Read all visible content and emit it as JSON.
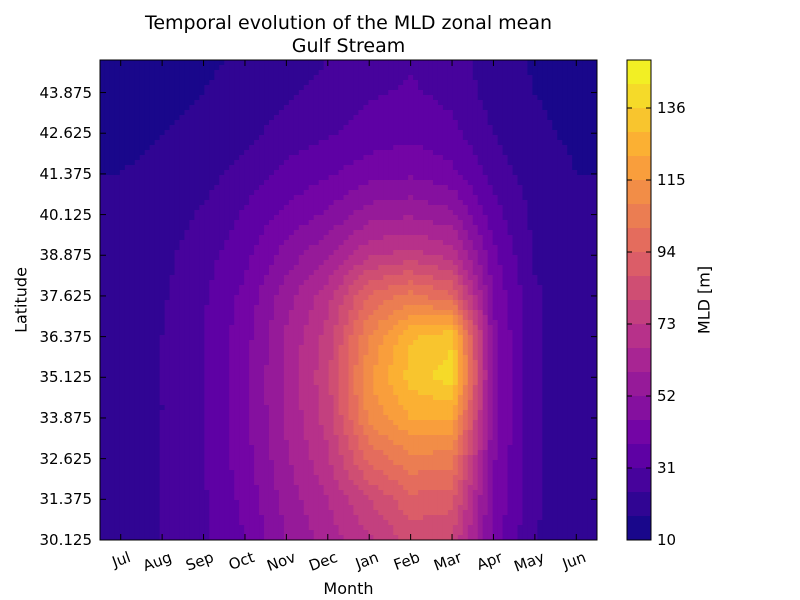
{
  "chart_data": {
    "type": "heatmap",
    "title": "Temporal evolution of the MLD zonal mean",
    "subtitle": "Gulf Stream",
    "xlabel": "Month",
    "ylabel": "Latitude",
    "colorbar_label": "MLD [m]",
    "colormap": "plasma",
    "colormap_stops": [
      "#0d0887",
      "#6a00a8",
      "#b12a90",
      "#e16462",
      "#fca636",
      "#f0f921"
    ],
    "x_categories": [
      "Jul",
      "Aug",
      "Sep",
      "Oct",
      "Nov",
      "Dec",
      "Jan",
      "Feb",
      "Mar",
      "Apr",
      "May",
      "Jun"
    ],
    "y_ticks": [
      "30.125",
      "31.375",
      "32.625",
      "33.875",
      "35.125",
      "36.375",
      "37.625",
      "38.875",
      "40.125",
      "41.375",
      "42.625",
      "43.875"
    ],
    "ylim": [
      30.125,
      44.875
    ],
    "colorbar_ticks": [
      10,
      31,
      52,
      73,
      94,
      115,
      136
    ],
    "clim": [
      10,
      150
    ],
    "z_latitudes": [
      30.125,
      31.375,
      32.625,
      33.875,
      35.125,
      36.375,
      37.625,
      38.875,
      40.125,
      41.375,
      42.625,
      43.875,
      44.875
    ],
    "z_values": [
      [
        20,
        24,
        30,
        38,
        52,
        62,
        72,
        82,
        80,
        42,
        24,
        20
      ],
      [
        20,
        24,
        30,
        40,
        55,
        66,
        80,
        92,
        90,
        44,
        25,
        20
      ],
      [
        20,
        24,
        31,
        42,
        58,
        72,
        96,
        106,
        105,
        46,
        25,
        20
      ],
      [
        20,
        24,
        31,
        43,
        60,
        76,
        110,
        122,
        122,
        48,
        25,
        20
      ],
      [
        20,
        24,
        31,
        43,
        61,
        78,
        114,
        132,
        140,
        48,
        25,
        20
      ],
      [
        20,
        24,
        31,
        42,
        60,
        76,
        108,
        128,
        134,
        47,
        25,
        20
      ],
      [
        20,
        23,
        30,
        40,
        56,
        70,
        95,
        104,
        95,
        44,
        25,
        20
      ],
      [
        19,
        22,
        28,
        36,
        48,
        58,
        72,
        76,
        70,
        40,
        23,
        19
      ],
      [
        18,
        20,
        25,
        32,
        40,
        46,
        56,
        58,
        54,
        34,
        22,
        18
      ],
      [
        17,
        18,
        21,
        27,
        33,
        37,
        42,
        44,
        40,
        28,
        20,
        17
      ],
      [
        16,
        17,
        18,
        22,
        27,
        30,
        34,
        36,
        33,
        24,
        18,
        16
      ],
      [
        15,
        16,
        17,
        19,
        23,
        26,
        30,
        32,
        29,
        21,
        17,
        15
      ],
      [
        15,
        15,
        16,
        18,
        21,
        24,
        28,
        30,
        27,
        20,
        16,
        15
      ]
    ]
  }
}
